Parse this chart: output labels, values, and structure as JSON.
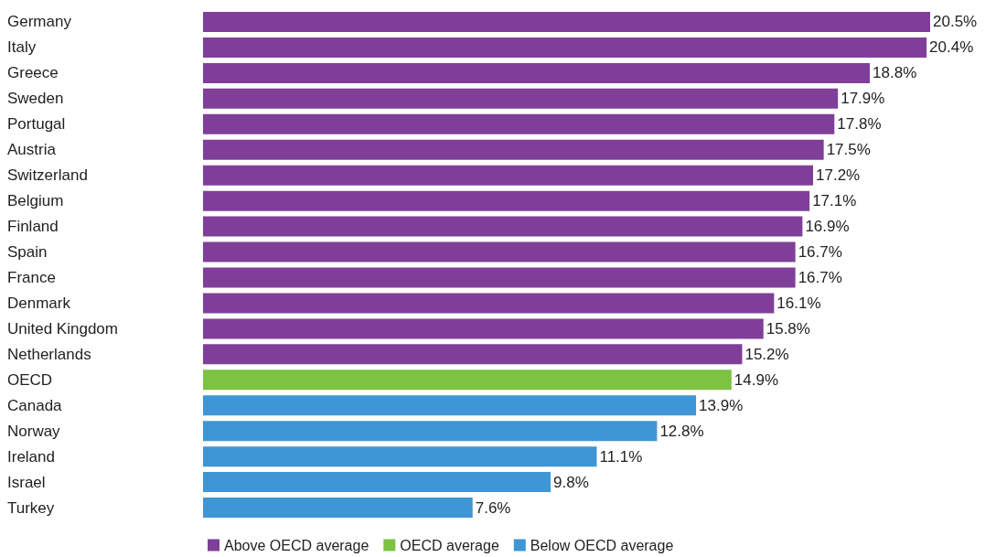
{
  "chart_data": {
    "type": "bar",
    "orientation": "horizontal",
    "stacked": true,
    "legend": "bottom",
    "categories": [
      "Germany",
      "Italy",
      "Greece",
      "Sweden",
      "Portugal",
      "Austria",
      "Switzerland",
      "Belgium",
      "Finland",
      "Spain",
      "France",
      "Denmark",
      "United Kingdom",
      "Netherlands",
      "OECD",
      "Canada",
      "Norway",
      "Ireland",
      "Israel",
      "Turkey"
    ],
    "series": [
      {
        "name": "Above OECD average",
        "color": "#7f3f98",
        "values": [
          20.5,
          20.4,
          18.8,
          17.9,
          17.8,
          17.5,
          17.2,
          17.1,
          16.9,
          16.7,
          16.7,
          16.1,
          15.8,
          15.2,
          null,
          null,
          null,
          null,
          null,
          null
        ],
        "value_labels": [
          "20.5%",
          "20.4%",
          "18.8%",
          "17.9%",
          "17.8%",
          "17.5%",
          "17.2%",
          "17.1%",
          "16.9%",
          "16.7%",
          "16.7%",
          "16.1%",
          "15.8%",
          "15.2%",
          null,
          null,
          null,
          null,
          null,
          null
        ]
      },
      {
        "name": "OECD average",
        "color": "#7dc242",
        "values": [
          null,
          null,
          null,
          null,
          null,
          null,
          null,
          null,
          null,
          null,
          null,
          null,
          null,
          null,
          14.9,
          null,
          null,
          null,
          null,
          null
        ],
        "value_labels": [
          null,
          null,
          null,
          null,
          null,
          null,
          null,
          null,
          null,
          null,
          null,
          null,
          null,
          null,
          "14.9%",
          null,
          null,
          null,
          null,
          null
        ]
      },
      {
        "name": "Below OECD average",
        "color": "#3f96d4",
        "values": [
          null,
          null,
          null,
          null,
          null,
          null,
          null,
          null,
          null,
          null,
          null,
          null,
          null,
          null,
          null,
          13.9,
          12.8,
          11.1,
          9.8,
          7.6
        ],
        "value_labels": [
          null,
          null,
          null,
          null,
          null,
          null,
          null,
          null,
          null,
          null,
          null,
          null,
          null,
          null,
          null,
          "13.9%",
          "12.8%",
          "11.1%",
          "9.8%",
          "7.6%"
        ]
      }
    ]
  }
}
